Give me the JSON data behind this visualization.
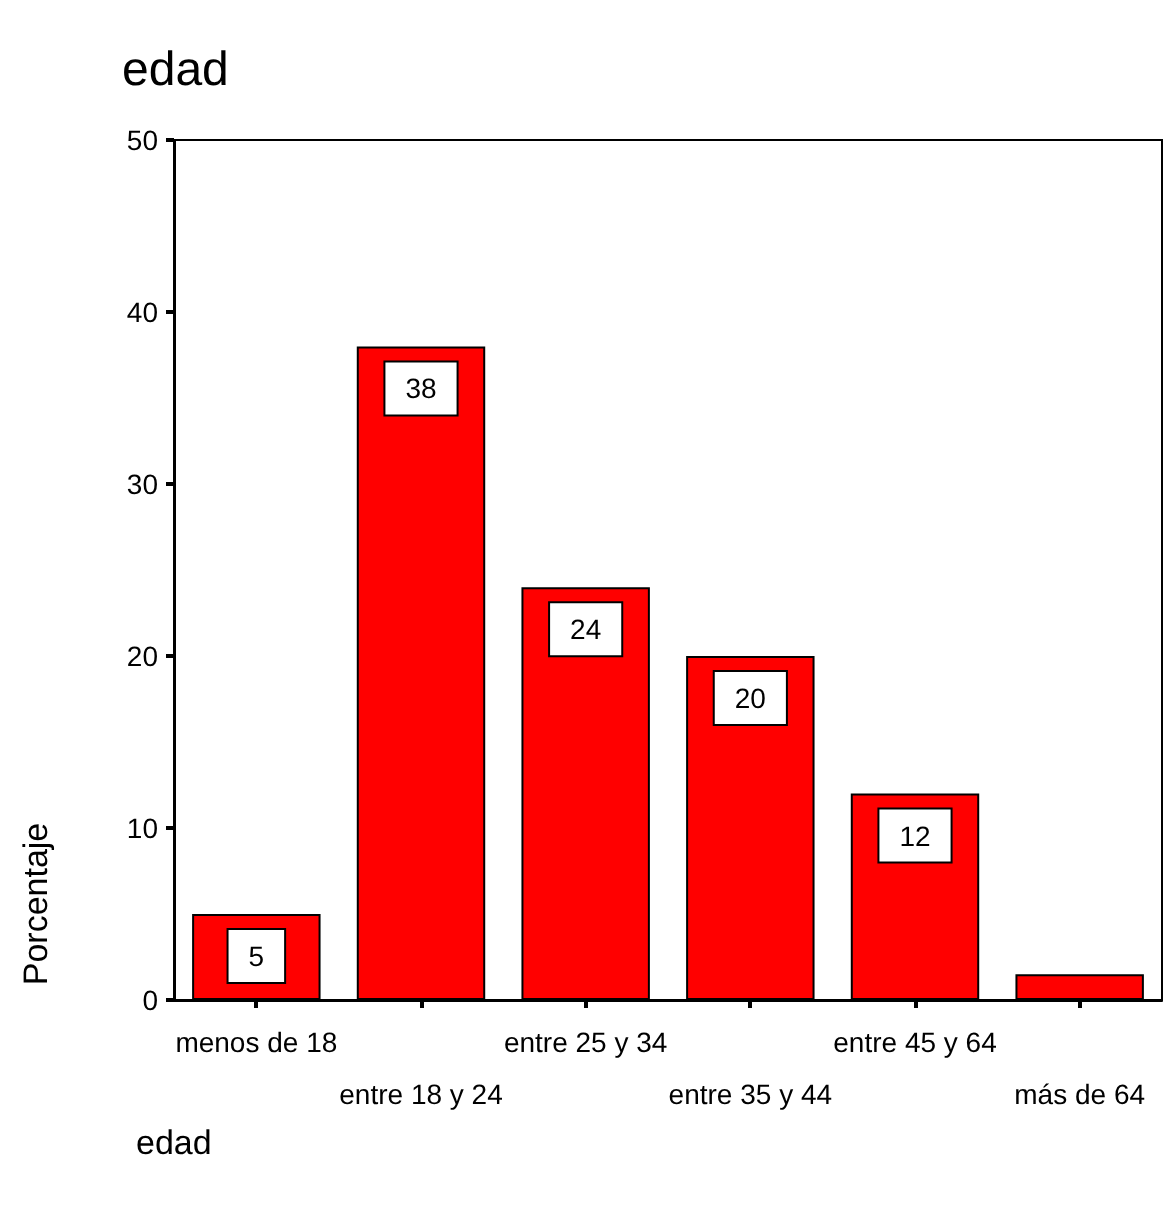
{
  "chart_data": {
    "type": "bar",
    "title": "edad",
    "xlabel": "edad",
    "ylabel": "Porcentaje",
    "categories": [
      "menos de 18",
      "entre 18 y 24",
      "entre 25 y 34",
      "entre 35 y 44",
      "entre 45 y 64",
      "más de 64"
    ],
    "values": [
      5,
      38,
      24,
      20,
      12,
      1.5
    ],
    "value_labels": [
      "5",
      "38",
      "24",
      "20",
      "12",
      null
    ],
    "color": "#ff0000",
    "ylim": [
      0,
      50
    ],
    "yticks": [
      0,
      10,
      20,
      30,
      40,
      50
    ],
    "grid": false
  }
}
